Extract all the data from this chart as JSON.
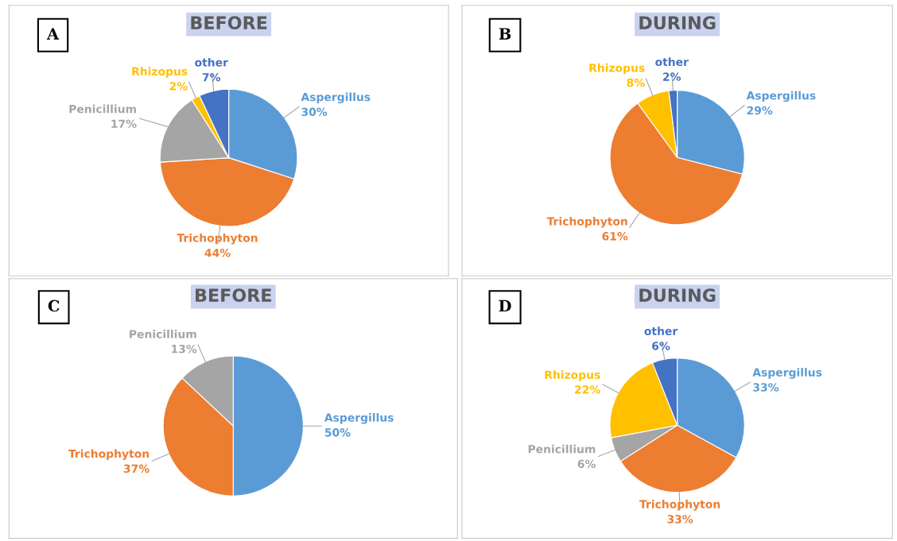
{
  "chart_data": [
    {
      "type": "pie",
      "title": "BEFORE",
      "annotations": [
        "A"
      ],
      "categories": [
        "Aspergillus",
        "Trichophyton",
        "Penicillium",
        "Rhizopus",
        "other"
      ],
      "values": [
        30,
        44,
        17,
        2,
        7
      ],
      "value_labels": [
        "30%",
        "44%",
        "17%",
        "2%",
        "7%"
      ],
      "colors": [
        "#5b9bd5",
        "#ed7d31",
        "#a5a5a5",
        "#ffc000",
        "#4472c4"
      ]
    },
    {
      "type": "pie",
      "title": "DURING",
      "annotations": [
        "B"
      ],
      "categories": [
        "Aspergillus",
        "Trichophyton",
        "Rhizopus",
        "other"
      ],
      "values": [
        29,
        61,
        8,
        2
      ],
      "value_labels": [
        "29%",
        "61%",
        "8%",
        "2%"
      ],
      "colors": [
        "#5b9bd5",
        "#ed7d31",
        "#ffc000",
        "#4472c4"
      ]
    },
    {
      "type": "pie",
      "title": "BEFORE",
      "annotations": [
        "C"
      ],
      "categories": [
        "Aspergillus",
        "Trichophyton",
        "Penicillium"
      ],
      "values": [
        50,
        37,
        13
      ],
      "value_labels": [
        "50%",
        "37%",
        "13%"
      ],
      "colors": [
        "#5b9bd5",
        "#ed7d31",
        "#a5a5a5"
      ]
    },
    {
      "type": "pie",
      "title": "DURING",
      "annotations": [
        "D"
      ],
      "categories": [
        "Aspergillus",
        "Trichophyton",
        "Penicillium",
        "Rhizopus",
        "other"
      ],
      "values": [
        33,
        33,
        6,
        22,
        6
      ],
      "value_labels": [
        "33%",
        "33%",
        "6%",
        "22%",
        "6%"
      ],
      "colors": [
        "#5b9bd5",
        "#ed7d31",
        "#a5a5a5",
        "#ffc000",
        "#4472c4"
      ]
    }
  ]
}
